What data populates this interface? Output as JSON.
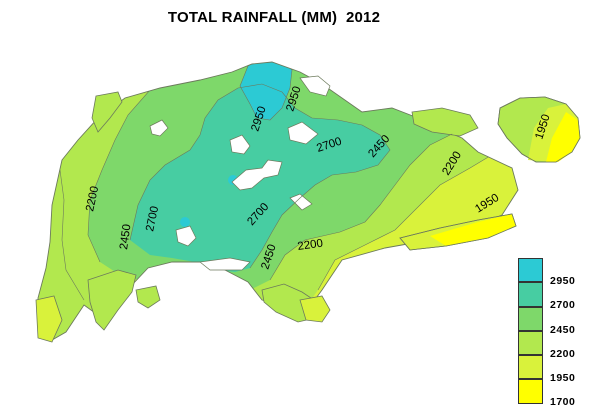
{
  "title": "TOTAL RAINFALL (MM)  2012",
  "colors": {
    "c2950": "#2ccad4",
    "c2700": "#47cda2",
    "c2450": "#7ed86a",
    "c2200": "#b2e84e",
    "c1950": "#d9f23b",
    "c1700": "#ffff00",
    "water": "#ffffff",
    "boundary": "#6c7a5c"
  },
  "legend": [
    {
      "value": "2950",
      "color": "#2ccad4"
    },
    {
      "value": "2700",
      "color": "#47cda2"
    },
    {
      "value": "2450",
      "color": "#7ed86a"
    },
    {
      "value": "2200",
      "color": "#b2e84e"
    },
    {
      "value": "1950",
      "color": "#d9f23b"
    },
    {
      "value": "1700",
      "color": "#ffff00"
    }
  ],
  "contour_labels": [
    {
      "id": "l2950a",
      "text": "2950"
    },
    {
      "id": "l2950b",
      "text": "2950"
    },
    {
      "id": "l2700a",
      "text": "2700"
    },
    {
      "id": "l2700b",
      "text": "2700"
    },
    {
      "id": "l2700c",
      "text": "2700"
    },
    {
      "id": "l2450a",
      "text": "2450"
    },
    {
      "id": "l2450b",
      "text": "2450"
    },
    {
      "id": "l2450c",
      "text": "2450"
    },
    {
      "id": "l2200a",
      "text": "2200"
    },
    {
      "id": "l2200b",
      "text": "2200"
    },
    {
      "id": "l2200c",
      "text": "2200"
    },
    {
      "id": "l1950a",
      "text": "1950"
    },
    {
      "id": "l1950b",
      "text": "1950"
    }
  ]
}
